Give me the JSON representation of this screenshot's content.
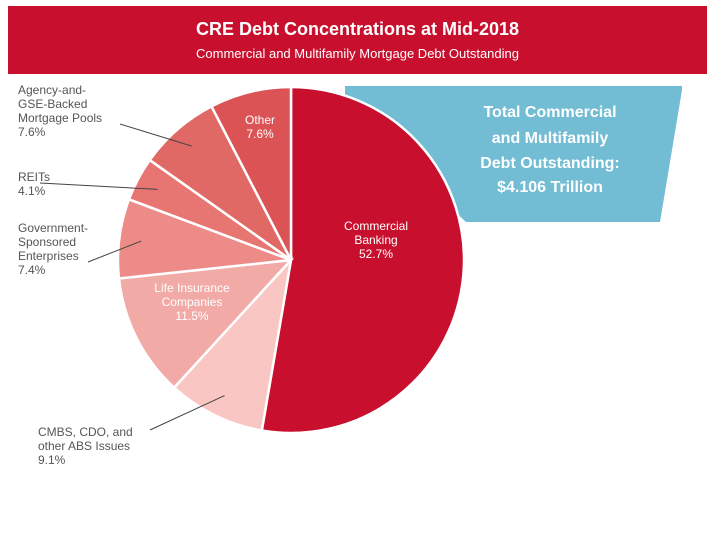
{
  "header": {
    "title": "CRE Debt Concentrations at Mid-2018",
    "subtitle": "Commercial and Multifamily Mortgage Debt Outstanding"
  },
  "callout": {
    "line1": "Total Commercial",
    "line2": "and Multifamily",
    "line3": "Debt Outstanding:",
    "line4": "$4.106 Trillion",
    "color": "#72bcd4"
  },
  "chart_data": {
    "type": "pie",
    "title": "CRE Debt Concentrations at Mid-2018",
    "subtitle": "Commercial and Multifamily Mortgage Debt Outstanding",
    "total_label": "$4.106 Trillion",
    "slices": [
      {
        "name": "Commercial Banking",
        "value": 52.7,
        "pct_label": "52.7%",
        "color": "#c8102e",
        "label_lines": [
          "Commercial",
          "Banking",
          "52.7%"
        ],
        "label_color": "#ffffff",
        "placement": "inside"
      },
      {
        "name": "CMBS, CDO, and other ABS Issues",
        "value": 9.1,
        "pct_label": "9.1%",
        "color": "#f9c6c3",
        "label_lines": [
          "CMBS, CDO, and",
          "other ABS Issues",
          "9.1%"
        ],
        "label_color": "#555555",
        "placement": "outside"
      },
      {
        "name": "Life Insurance Companies",
        "value": 11.5,
        "pct_label": "11.5%",
        "color": "#f2aaa7",
        "label_lines": [
          "Life Insurance",
          "Companies",
          "11.5%"
        ],
        "label_color": "#ffffff",
        "placement": "inside"
      },
      {
        "name": "Government-Sponsored Enterprises",
        "value": 7.4,
        "pct_label": "7.4%",
        "color": "#ec8b88",
        "label_lines": [
          "Government-",
          "Sponsored",
          "Enterprises",
          "7.4%"
        ],
        "label_color": "#555555",
        "placement": "outside"
      },
      {
        "name": "REITs",
        "value": 4.1,
        "pct_label": "4.1%",
        "color": "#e77673",
        "label_lines": [
          "REITs",
          "4.1%"
        ],
        "label_color": "#555555",
        "placement": "outside"
      },
      {
        "name": "Agency-and-GSE-Backed Mortgage Pools",
        "value": 7.6,
        "pct_label": "7.6%",
        "color": "#e06966",
        "label_lines": [
          "Agency-and-",
          "GSE-Backed",
          "Mortgage Pools",
          "7.6%"
        ],
        "label_color": "#555555",
        "placement": "outside"
      },
      {
        "name": "Other",
        "value": 7.6,
        "pct_label": "7.6%",
        "color": "#dc5355",
        "label_lines": [
          "Other",
          "7.6%"
        ],
        "label_color": "#ffffff",
        "placement": "inside"
      }
    ]
  }
}
